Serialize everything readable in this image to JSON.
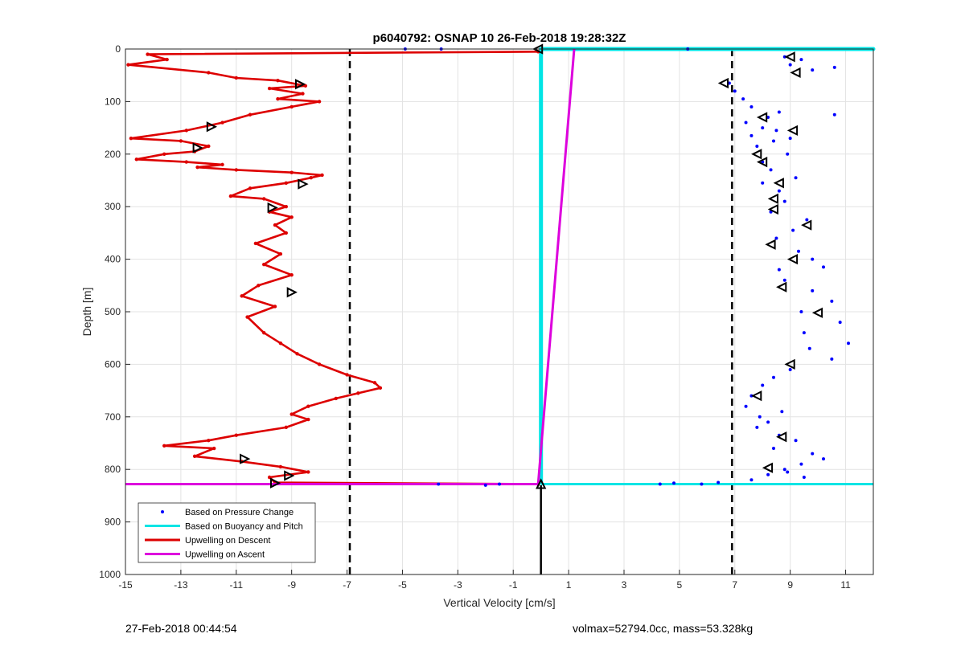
{
  "chart_data": {
    "type": "line",
    "title": "p6040792: OSNAP 10 26-Feb-2018 19:28:32Z",
    "xlabel": "Vertical Velocity [cm/s]",
    "ylabel": "Depth [m]",
    "xlim": [
      -15,
      12
    ],
    "ylim": [
      0,
      1000
    ],
    "y_reversed": true,
    "grid": true,
    "xticks": [
      -15,
      -13,
      -11,
      -9,
      -7,
      -5,
      -3,
      -1,
      1,
      3,
      5,
      7,
      9,
      11
    ],
    "yticks": [
      0,
      100,
      200,
      300,
      400,
      500,
      600,
      700,
      800,
      900,
      1000
    ],
    "legend_position": "bottom-left",
    "legend": [
      {
        "label": "Based on Pressure Change",
        "style": "dots",
        "color": "#0000ff"
      },
      {
        "label": "Based on Buoyancy and Pitch",
        "style": "line",
        "color": "#00e5e5"
      },
      {
        "label": "Upwelling on Descent",
        "style": "line",
        "color": "#dd0000"
      },
      {
        "label": "Upwelling on Ascent",
        "style": "line",
        "color": "#dd00dd"
      }
    ],
    "reference_lines": {
      "dashed_vertical_x": [
        -6.9,
        6.9
      ],
      "bottom_depth": 828,
      "ascent_marker_x": 0,
      "ascent_marker_from_depth": 1000,
      "ascent_marker_to_depth": 830
    },
    "series": [
      {
        "name": "Based on Buoyancy and Pitch",
        "color": "#00e5e5",
        "x": [
          0,
          0,
          12,
          12,
          0,
          0
        ],
        "y": [
          828,
          0,
          0,
          0,
          0,
          828
        ]
      },
      {
        "name": "Upwelling on Descent",
        "color": "#dd0000",
        "x": [
          -0.1,
          -14.2,
          -13.5,
          -14.9,
          -12.0,
          -11.0,
          -9.5,
          -8.5,
          -9.8,
          -8.6,
          -9.5,
          -8.0,
          -9.0,
          -10.5,
          -11.5,
          -12.8,
          -14.8,
          -13.0,
          -12.0,
          -12.5,
          -13.6,
          -14.6,
          -12.8,
          -11.5,
          -12.4,
          -11.0,
          -9.0,
          -7.9,
          -8.3,
          -9.2,
          -10.5,
          -11.2,
          -10.0,
          -9.2,
          -9.8,
          -9.0,
          -9.6,
          -9.2,
          -10.3,
          -9.4,
          -10.0,
          -9.0,
          -10.2,
          -10.8,
          -9.6,
          -10.6,
          -10.0,
          -9.4,
          -8.8,
          -8.0,
          -7.0,
          -6.0,
          -5.8,
          -6.6,
          -7.4,
          -8.4,
          -9.0,
          -8.4,
          -9.2,
          -11.0,
          -12.0,
          -13.6,
          -11.8,
          -12.5,
          -10.8,
          -9.4,
          -8.4,
          -9.8,
          -9.6,
          -0.1
        ],
        "y": [
          5,
          10,
          20,
          30,
          45,
          55,
          60,
          70,
          75,
          85,
          95,
          100,
          110,
          125,
          140,
          155,
          170,
          175,
          185,
          195,
          200,
          210,
          215,
          220,
          225,
          230,
          235,
          240,
          245,
          255,
          265,
          280,
          285,
          300,
          310,
          320,
          335,
          350,
          370,
          390,
          410,
          430,
          450,
          470,
          490,
          510,
          540,
          560,
          580,
          600,
          620,
          635,
          645,
          655,
          665,
          680,
          695,
          705,
          720,
          735,
          745,
          755,
          760,
          775,
          785,
          795,
          805,
          815,
          825,
          828
        ]
      },
      {
        "name": "Upwelling on Ascent",
        "color": "#dd00dd",
        "x": [
          -15,
          -0.1,
          1.2
        ],
        "y": [
          828,
          828,
          0
        ]
      },
      {
        "name": "Based on Pressure Change",
        "color": "#0000ff",
        "x": [
          8.8,
          9.4,
          9.0,
          10.6,
          9.8,
          6.8,
          7.0,
          7.3,
          7.6,
          7.4,
          8.2,
          8.6,
          10.6,
          8.0,
          8.5,
          7.6,
          9.0,
          8.4,
          7.8,
          8.9,
          8.0,
          8.3,
          9.2,
          8.0,
          8.6,
          8.8,
          8.3,
          9.6,
          9.1,
          8.5,
          9.3,
          9.8,
          8.6,
          8.8,
          10.2,
          9.8,
          10.5,
          9.4,
          10.8,
          9.5,
          11.1,
          9.7,
          10.5,
          9.0,
          8.4,
          8.0,
          7.6,
          7.4,
          7.9,
          8.7,
          8.2,
          7.8,
          8.6,
          9.2,
          8.4,
          9.8,
          10.2,
          9.4,
          8.8,
          8.2,
          7.6,
          8.9,
          9.5,
          4.3,
          4.8,
          5.8,
          6.4,
          -3.7,
          -2.0,
          -1.5,
          -4.9,
          5.3,
          -3.6
        ],
        "y": [
          15,
          20,
          30,
          35,
          40,
          65,
          80,
          95,
          110,
          140,
          130,
          120,
          125,
          150,
          155,
          165,
          170,
          175,
          185,
          200,
          215,
          230,
          245,
          255,
          270,
          290,
          310,
          325,
          345,
          360,
          385,
          400,
          420,
          440,
          415,
          460,
          480,
          500,
          520,
          540,
          560,
          570,
          590,
          610,
          625,
          640,
          660,
          680,
          700,
          690,
          710,
          720,
          735,
          745,
          760,
          770,
          780,
          790,
          800,
          810,
          820,
          805,
          815,
          828,
          826,
          828,
          825,
          828,
          830,
          828,
          0,
          0,
          0
        ]
      }
    ],
    "markers": {
      "descent_left_triangles": [
        [
          -0.1,
          0
        ],
        [
          -8.7,
          67
        ],
        [
          -11.9,
          148
        ],
        [
          -12.4,
          188
        ],
        [
          -8.6,
          257
        ],
        [
          -9.7,
          302
        ],
        [
          -9.0,
          463
        ],
        [
          -10.7,
          780
        ],
        [
          -9.1,
          812
        ],
        [
          -9.6,
          826
        ]
      ],
      "ascent_right_triangles": [
        [
          9.0,
          15
        ],
        [
          9.2,
          45
        ],
        [
          6.6,
          65
        ],
        [
          8.0,
          130
        ],
        [
          9.1,
          155
        ],
        [
          7.8,
          200
        ],
        [
          8.0,
          215
        ],
        [
          8.6,
          255
        ],
        [
          8.4,
          285
        ],
        [
          8.4,
          305
        ],
        [
          9.6,
          335
        ],
        [
          8.3,
          372
        ],
        [
          9.1,
          400
        ],
        [
          8.7,
          453
        ],
        [
          10.0,
          502
        ],
        [
          9.0,
          600
        ],
        [
          7.8,
          660
        ],
        [
          8.7,
          738
        ],
        [
          8.2,
          797
        ],
        [
          0,
          828
        ]
      ]
    }
  },
  "footer": {
    "left": "27-Feb-2018 00:44:54",
    "right": "volmax=52794.0cc, mass=53.328kg"
  }
}
